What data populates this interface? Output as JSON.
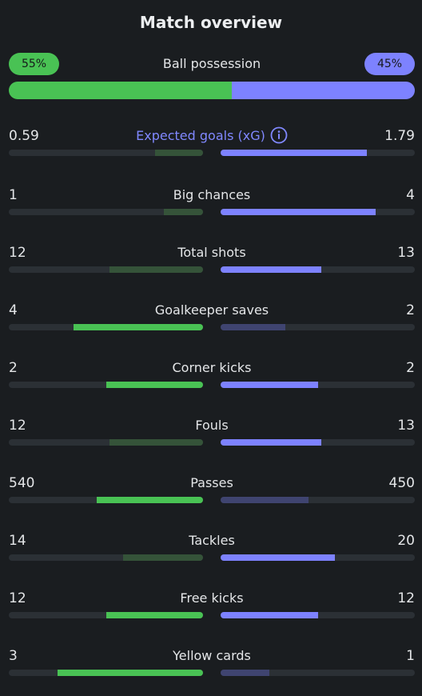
{
  "title": "Match overview",
  "colors": {
    "home_strong": "#49c254",
    "home_weak": "#355339",
    "away_strong": "#7d82ff",
    "away_weak": "#3f4470",
    "accent": "#8088ff"
  },
  "possession": {
    "label": "Ball possession",
    "home_text": "55%",
    "away_text": "45%",
    "home_value": 55,
    "away_value": 45
  },
  "stats": [
    {
      "label": "Expected goals (xG)",
      "home": "0.59",
      "away": "1.79",
      "home_num": 0.59,
      "away_num": 1.79,
      "accent": true,
      "info_icon": "info-icon"
    },
    {
      "label": "Big chances",
      "home": "1",
      "away": "4",
      "home_num": 1,
      "away_num": 4
    },
    {
      "label": "Total shots",
      "home": "12",
      "away": "13",
      "home_num": 12,
      "away_num": 13
    },
    {
      "label": "Goalkeeper saves",
      "home": "4",
      "away": "2",
      "home_num": 4,
      "away_num": 2
    },
    {
      "label": "Corner kicks",
      "home": "2",
      "away": "2",
      "home_num": 2,
      "away_num": 2
    },
    {
      "label": "Fouls",
      "home": "12",
      "away": "13",
      "home_num": 12,
      "away_num": 13
    },
    {
      "label": "Passes",
      "home": "540",
      "away": "450",
      "home_num": 540,
      "away_num": 450
    },
    {
      "label": "Tackles",
      "home": "14",
      "away": "20",
      "home_num": 14,
      "away_num": 20
    },
    {
      "label": "Free kicks",
      "home": "12",
      "away": "12",
      "home_num": 12,
      "away_num": 12
    },
    {
      "label": "Yellow cards",
      "home": "3",
      "away": "1",
      "home_num": 3,
      "away_num": 1
    }
  ]
}
